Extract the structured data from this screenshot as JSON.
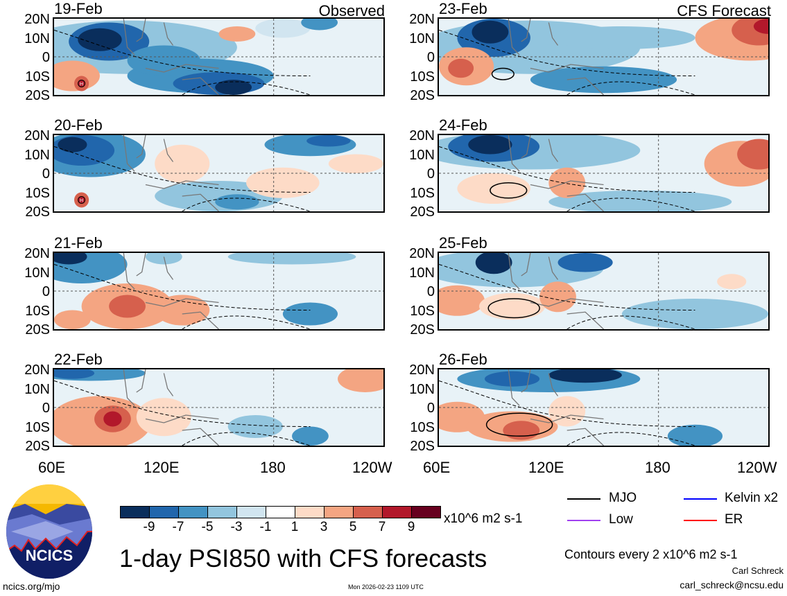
{
  "title": "1-day PSI850 with CFS forecasts",
  "panels_left": {
    "header": "Observed",
    "dates": [
      "19-Feb",
      "20-Feb",
      "21-Feb",
      "22-Feb"
    ]
  },
  "panels_right": {
    "header": "CFS Forecast",
    "dates": [
      "23-Feb",
      "24-Feb",
      "25-Feb",
      "26-Feb"
    ]
  },
  "lat_labels": [
    "20N",
    "10N",
    "0",
    "10S",
    "20S"
  ],
  "lon_labels": [
    "60E",
    "120E",
    "180",
    "120W"
  ],
  "high_marker": "H",
  "colorbar": {
    "colors": [
      "#0a2e5c",
      "#2166ac",
      "#4393c3",
      "#92c5de",
      "#d1e5f0",
      "#ffffff",
      "#fddbc7",
      "#f4a582",
      "#d6604d",
      "#b2182b",
      "#67001f"
    ],
    "labels": [
      "-9",
      "-7",
      "-5",
      "-3",
      "-1",
      "1",
      "3",
      "5",
      "7",
      "9"
    ],
    "units": "x10^6 m2 s-1"
  },
  "legend": [
    {
      "label": "MJO",
      "color": "#000000"
    },
    {
      "label": "Kelvin x2",
      "color": "#0000ff"
    },
    {
      "label": "Low",
      "color": "#a040f0"
    },
    {
      "label": "ER",
      "color": "#ff0000"
    }
  ],
  "contour_note": "Contours every 2 x10^6 m2 s-1",
  "author": "Carl Schreck",
  "email": "carl_schreck@ncsu.edu",
  "site": "ncics.org/mjo",
  "timestamp": "Mon 2026-02-23 1109 UTC",
  "logo_text": "NCICS"
}
